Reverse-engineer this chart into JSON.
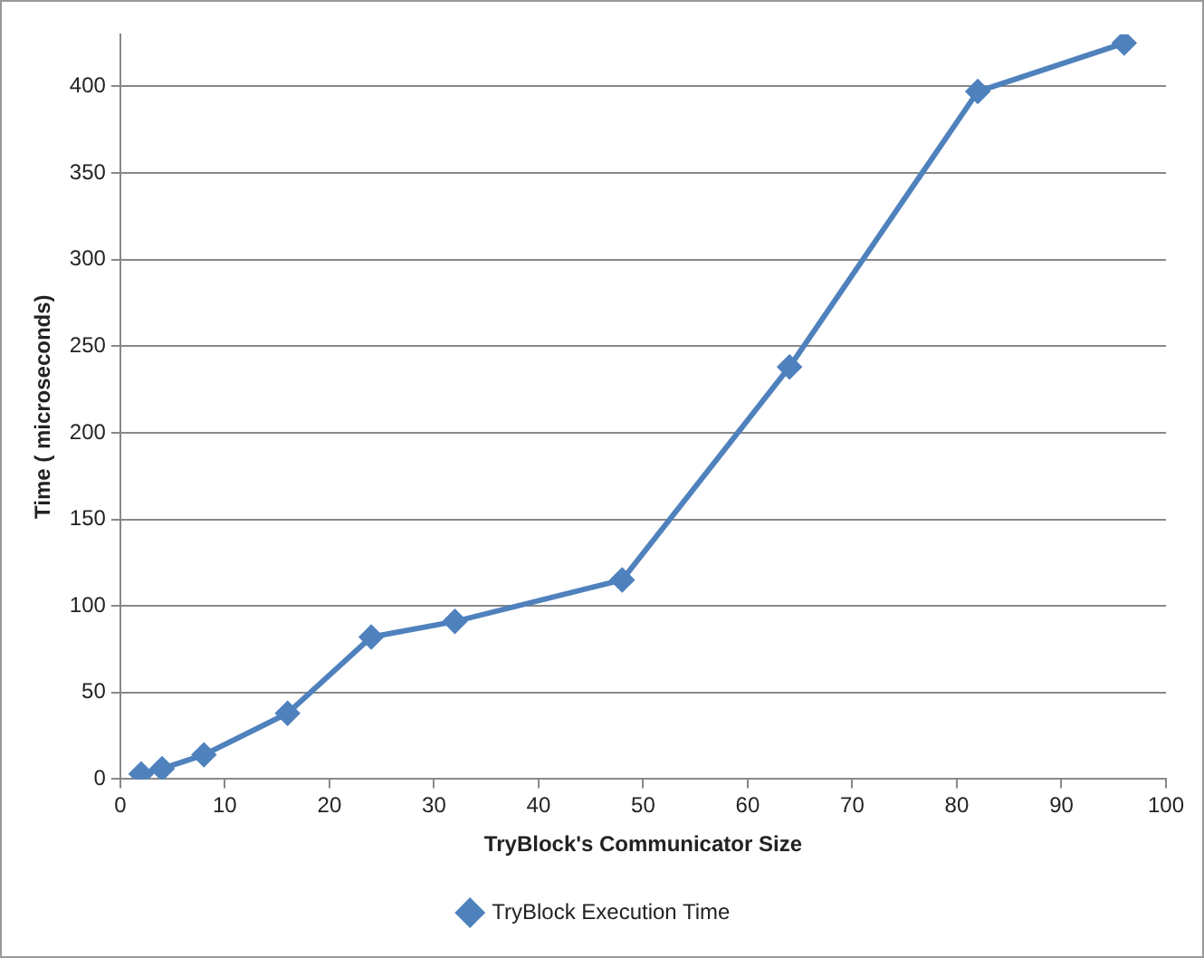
{
  "chart_data": {
    "type": "line",
    "xlabel": "TryBlock's Communicator Size",
    "ylabel": "Time ( microseconds)",
    "x": [
      2,
      4,
      8,
      16,
      24,
      32,
      48,
      64,
      82,
      96
    ],
    "series": [
      {
        "name": "TryBlock Execution Time",
        "color": "#4f81bd",
        "values": [
          3,
          6,
          14,
          38,
          82,
          91,
          115,
          238,
          397,
          425
        ]
      }
    ],
    "xlim": [
      0,
      100
    ],
    "xticks": [
      0,
      10,
      20,
      30,
      40,
      50,
      60,
      70,
      80,
      90,
      100
    ],
    "ylim": [
      0,
      430
    ],
    "yticks": [
      0,
      50,
      100,
      150,
      200,
      250,
      300,
      350,
      400
    ],
    "grid": "y",
    "legend": "bottom",
    "marker": "diamond",
    "line_style": "solid"
  }
}
